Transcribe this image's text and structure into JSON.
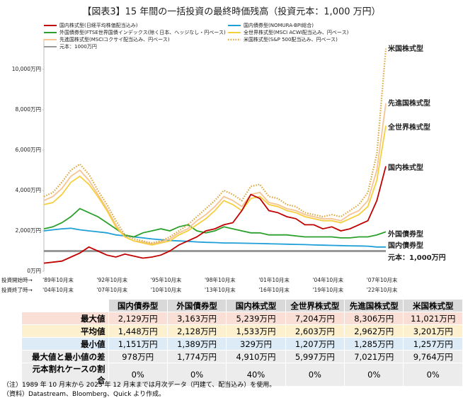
{
  "chart_data": {
    "type": "line",
    "title": "【図表3】15 年間の一括投資の最終時価残高（投資元本：1,000 万円）",
    "categories": [
      "'89年10月末",
      null,
      null,
      null,
      null,
      null,
      "'92年10月末",
      null,
      null,
      null,
      null,
      null,
      "'95年10月末",
      null,
      null,
      null,
      null,
      null,
      "'98年10月末",
      null,
      null,
      null,
      null,
      null,
      "'01年10月末",
      null,
      null,
      null,
      null,
      null,
      "'04年10月末",
      null,
      null,
      null,
      null,
      null,
      "'07年10月末",
      null,
      null
    ],
    "end_categories": [
      "'04年10月末",
      null,
      null,
      null,
      null,
      null,
      "'07年10月末",
      null,
      null,
      null,
      null,
      null,
      "'10年10月末",
      null,
      null,
      null,
      null,
      null,
      "'13年10月末",
      null,
      null,
      null,
      null,
      null,
      "'16年10月末",
      null,
      null,
      null,
      null,
      null,
      "'19年10月末",
      null,
      null,
      null,
      null,
      null,
      "'22年10月末",
      null,
      null
    ],
    "start_row_label": "投資開始時→",
    "end_row_label": "投資終了時→",
    "ylim": [
      0,
      11500
    ],
    "yticks": [
      {
        "value": 0,
        "label": "0万円"
      },
      {
        "value": 2000,
        "label": "2,000万円"
      },
      {
        "value": 4000,
        "label": "4,000万円"
      },
      {
        "value": 6000,
        "label": "6,000万円"
      },
      {
        "value": 8000,
        "label": "8,000万円"
      },
      {
        "value": 10000,
        "label": "10,000万円"
      }
    ],
    "series": [
      {
        "name": "国内株式型(日経平均株価配当込み)",
        "end_label": "国内株式型",
        "color": "#c00000",
        "dash": false,
        "values": [
          400,
          450,
          500,
          700,
          900,
          1200,
          1000,
          800,
          700,
          850,
          750,
          650,
          700,
          800,
          1000,
          1300,
          1500,
          1700,
          2000,
          2100,
          2300,
          2400,
          3000,
          3800,
          3600,
          3000,
          2900,
          2700,
          2600,
          2300,
          2300,
          2100,
          2200,
          2000,
          2100,
          2300,
          2500,
          3500,
          5200
        ]
      },
      {
        "name": "国内債券型(NOMURA-BPI総合)",
        "end_label": "国内債券型",
        "color": "#1f9fd8",
        "dash": false,
        "values": [
          2000,
          2050,
          2100,
          2129,
          2050,
          2000,
          1950,
          1900,
          1800,
          1750,
          1700,
          1650,
          1600,
          1560,
          1520,
          1500,
          1480,
          1450,
          1430,
          1420,
          1400,
          1400,
          1390,
          1380,
          1370,
          1360,
          1350,
          1340,
          1330,
          1320,
          1300,
          1290,
          1280,
          1270,
          1260,
          1250,
          1240,
          1200,
          1200
        ]
      },
      {
        "name": "外国債券型(FTSE世界国債インデックス(除く日本、ヘッジなし・円ベース)",
        "end_label": "外国債券型",
        "color": "#2ca02c",
        "dash": false,
        "values": [
          2100,
          2200,
          2400,
          2700,
          3100,
          2900,
          2700,
          2400,
          2100,
          1800,
          1700,
          1900,
          2000,
          2100,
          2000,
          2200,
          2300,
          2000,
          1900,
          2000,
          2200,
          2100,
          2000,
          1900,
          1900,
          1800,
          1800,
          1800,
          1750,
          1700,
          1700,
          1700,
          1700,
          1650,
          1650,
          1700,
          1700,
          1800,
          1950
        ]
      },
      {
        "name": "全世界株式型(MSCI ACWI配当込み、円ベース)",
        "end_label": "全世界株式型",
        "color": "#f5cf3f",
        "dash": false,
        "values": [
          3300,
          3400,
          3800,
          4400,
          4700,
          4300,
          3700,
          3000,
          2200,
          1700,
          1500,
          1400,
          1300,
          1400,
          1500,
          1800,
          2000,
          2300,
          2600,
          3000,
          3500,
          3300,
          3000,
          3600,
          3700,
          3300,
          3200,
          3000,
          2900,
          2700,
          2600,
          2500,
          2500,
          2400,
          2600,
          2800,
          3200,
          4500,
          7204
        ]
      },
      {
        "name": "先進国株式型(MSCIコクサイ配当込み、円ベース)",
        "end_label": "先進国株式型",
        "color": "#f6c493",
        "dash": false,
        "values": [
          3500,
          3700,
          4100,
          4700,
          5000,
          4500,
          3800,
          3100,
          2300,
          1700,
          1500,
          1450,
          1350,
          1450,
          1600,
          1900,
          2100,
          2500,
          2800,
          3200,
          3700,
          3500,
          3200,
          3800,
          3900,
          3400,
          3300,
          3100,
          3000,
          2800,
          2700,
          2600,
          2600,
          2500,
          2800,
          3000,
          3500,
          5000,
          8306
        ]
      },
      {
        "name": "米国株式型(S&P 500配当込み、円ベース)",
        "end_label": "米国株式型",
        "color": "#dca53a",
        "dash": true,
        "values": [
          3700,
          3900,
          4400,
          5000,
          5300,
          4800,
          4000,
          3300,
          2500,
          1800,
          1600,
          1500,
          1400,
          1500,
          1700,
          2000,
          2300,
          2700,
          3100,
          3500,
          4000,
          3800,
          3500,
          4200,
          4300,
          3700,
          3600,
          3300,
          3200,
          2900,
          2800,
          2700,
          2800,
          2700,
          3000,
          3300,
          3900,
          5800,
          11021
        ]
      }
    ],
    "reference_line": {
      "name": "元本：1000万円",
      "end_label": "元本：1,000万円",
      "value": 1000,
      "color": "#999999"
    }
  },
  "table": {
    "header": [
      "国内債券型",
      "外国債券型",
      "国内株式型",
      "全世界株式型",
      "先進国株式型",
      "米国株式型"
    ],
    "rows": [
      {
        "label": "最大値",
        "color": "#f9dfd6",
        "cells": [
          "2,129万円",
          "3,163万円",
          "5,239万円",
          "7,204万円",
          "8,306万円",
          "11,021万円"
        ]
      },
      {
        "label": "平均値",
        "color": "#fdf0cf",
        "cells": [
          "1,448万円",
          "2,128万円",
          "1,533万円",
          "2,603万円",
          "2,962万円",
          "3,201万円"
        ]
      },
      {
        "label": "最小値",
        "color": "#dcebf6",
        "cells": [
          "1,151万円",
          "1,389万円",
          "329万円",
          "1,207万円",
          "1,285万円",
          "1,257万円"
        ]
      },
      {
        "label": "最大値と最小値の差",
        "color": "#ececec",
        "cells": [
          "978万円",
          "1,774万円",
          "4,910万円",
          "5,997万円",
          "7,021万円",
          "9,764万円"
        ]
      },
      {
        "label": "元本割れケースの割合",
        "color": "#ececec",
        "cells": [
          "0%",
          "0%",
          "40%",
          "0%",
          "0%",
          "0%"
        ]
      }
    ]
  },
  "notes": [
    "（注）1989 年 10 月末から 2023 年 12 月末までは月次データ（円建て、配当込み）を使用。",
    "（資料）Datastream、Bloomberg、Quick より作成。"
  ]
}
